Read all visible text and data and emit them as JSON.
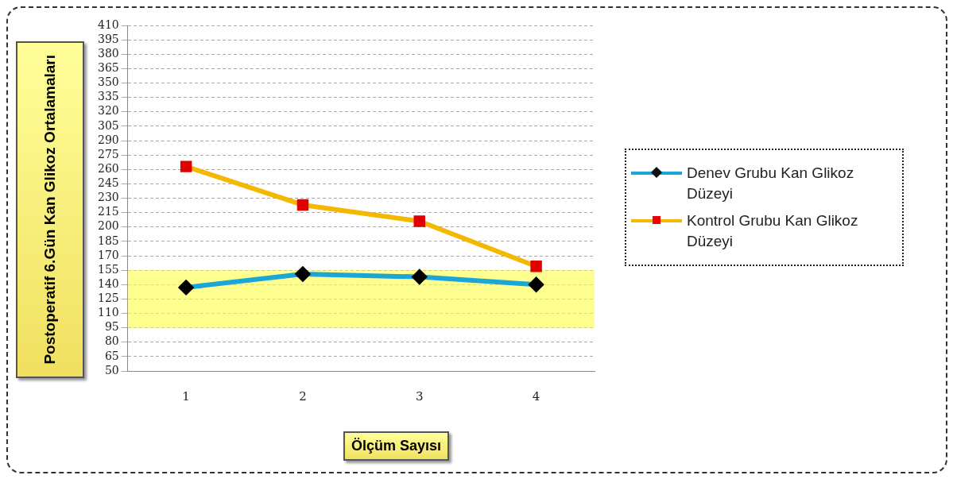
{
  "chart_data": {
    "type": "line",
    "ylabel": "Postoperatif 6.Gün Kan Glikoz Ortalamaları",
    "xlabel": "Ölçüm Sayısı",
    "categories": [
      "1",
      "2",
      "3",
      "4"
    ],
    "series": [
      {
        "name": "Denev Grubu Kan Glikoz Düzeyi",
        "color": "#1aa7d8",
        "marker": "diamond",
        "values": [
          137,
          151,
          148,
          140
        ]
      },
      {
        "name": "Kontrol Grubu Kan Glikoz Düzeyi",
        "color": "#f5b800",
        "marker": "square",
        "values": [
          263,
          223,
          206,
          159
        ]
      }
    ],
    "ylim": [
      50,
      410
    ],
    "yticks": [
      50,
      65,
      80,
      95,
      110,
      125,
      140,
      155,
      170,
      185,
      200,
      215,
      230,
      245,
      260,
      275,
      290,
      305,
      320,
      335,
      350,
      365,
      380,
      395,
      410
    ],
    "bands": [
      {
        "axis": "y",
        "from": 95,
        "to": 155,
        "color": "#ffff44"
      }
    ],
    "grid": "y",
    "legend": "right"
  }
}
